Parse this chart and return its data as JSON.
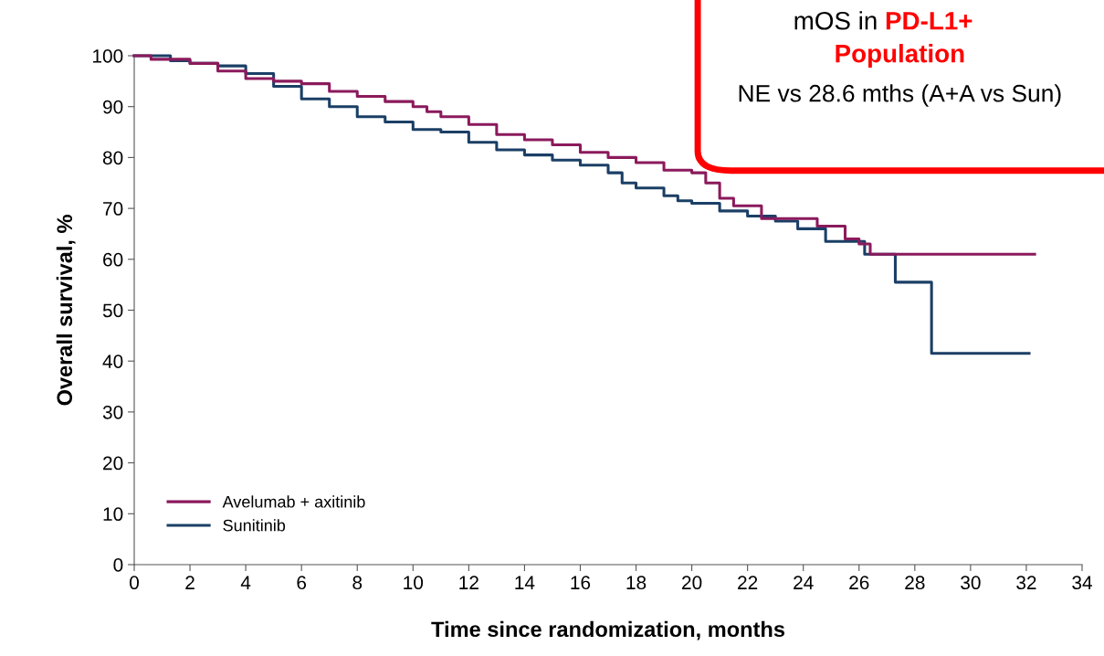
{
  "chart_data": {
    "type": "step",
    "xlabel": "Time since randomization, months",
    "ylabel": "Overall survival, %",
    "xlim": [
      0,
      34
    ],
    "xticks": [
      0,
      2,
      4,
      6,
      8,
      10,
      12,
      14,
      16,
      18,
      20,
      22,
      24,
      26,
      28,
      30,
      32,
      34
    ],
    "ylim": [
      0,
      100
    ],
    "yticks": [
      0,
      10,
      20,
      30,
      40,
      50,
      60,
      70,
      80,
      90,
      100
    ],
    "grid": false,
    "legend": "bottom left",
    "series": [
      {
        "name": "Avelumab + axitinib",
        "color": "#8b1a5c",
        "x": [
          0,
          0.6,
          2,
          3,
          4,
          5,
          6,
          7,
          8,
          9,
          10,
          10.5,
          11,
          12,
          13,
          14,
          15,
          16,
          17,
          18,
          19,
          20,
          20.5,
          21,
          21.5,
          22.5,
          24,
          24.5,
          25.5,
          26,
          26.4,
          32.3
        ],
        "values": [
          100,
          99.3,
          98.5,
          97,
          95.5,
          95,
          94.5,
          93,
          92,
          91,
          90,
          89,
          88,
          86.5,
          84.5,
          83.5,
          82.5,
          81,
          80,
          79,
          77.5,
          77,
          75,
          72,
          70.5,
          68,
          68,
          66.5,
          64,
          63,
          61,
          61
        ]
      },
      {
        "name": "Sunitinib",
        "color": "#1b3f66",
        "x": [
          0,
          1.3,
          2,
          3,
          4,
          5,
          6,
          7,
          8,
          9,
          10,
          11,
          12,
          13,
          14,
          15,
          16,
          17,
          17.5,
          18,
          19,
          19.5,
          20,
          21,
          22,
          23,
          23.8,
          24.8,
          26.2,
          27.3,
          28.6,
          32.1
        ],
        "values": [
          100,
          99,
          98.5,
          98,
          96.5,
          94,
          91.5,
          90,
          88,
          87,
          85.5,
          85,
          83,
          81.5,
          80.5,
          79.5,
          78.5,
          77,
          75,
          74,
          72.5,
          71.5,
          71,
          69.5,
          68.5,
          67.5,
          66,
          63.5,
          61,
          55.5,
          41.5,
          41.5
        ]
      }
    ],
    "annotations": [
      "mOS in",
      "PD-L1+ Population",
      "NE vs 28.6 mths (A+A vs Sun)"
    ]
  }
}
